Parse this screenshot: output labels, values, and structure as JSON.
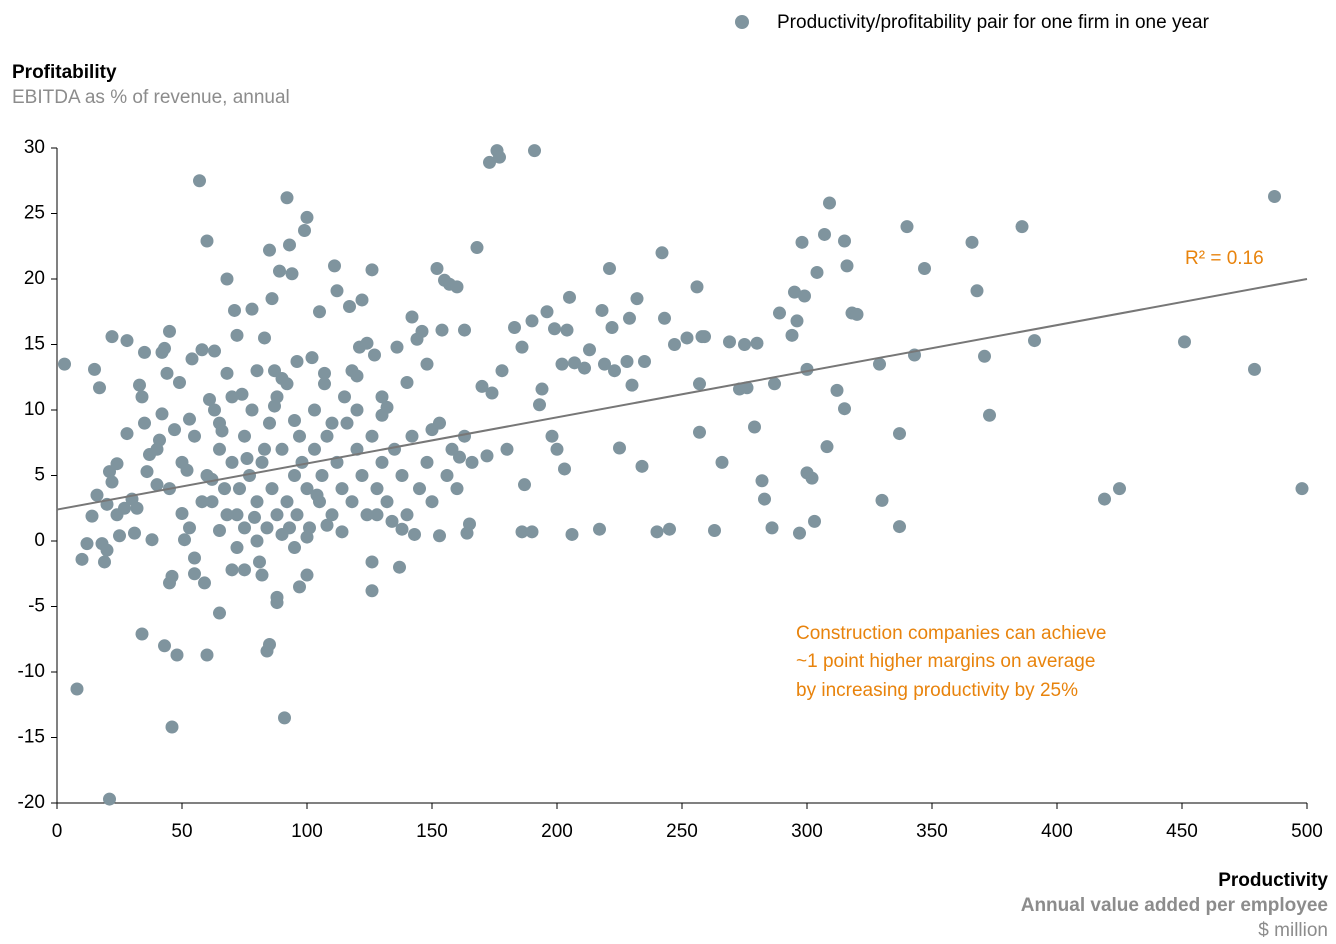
{
  "chart_data": {
    "type": "scatter",
    "y_title": "Profitability",
    "y_subtitle": "EBITDA as % of revenue, annual",
    "x_title": "Productivity",
    "x_subtitle": "Annual value added per employee",
    "x_unit": "$ million",
    "annotation": [
      "Construction companies can achieve",
      "~1 point higher margins on average",
      "by increasing productivity by 25%"
    ],
    "r2_label": "R² = 0.16",
    "legend": "top-right",
    "xlim": [
      0,
      500
    ],
    "xticks": [
      0,
      50,
      100,
      150,
      200,
      250,
      300,
      350,
      400,
      450,
      500
    ],
    "ylim": [
      -20,
      30
    ],
    "yticks": [
      -20,
      -15,
      -10,
      -5,
      0,
      5,
      10,
      15,
      20,
      25,
      30
    ],
    "trendline": {
      "color": "#777777",
      "x": [
        0,
        500
      ],
      "values": [
        2.4,
        20
      ]
    },
    "series": [
      {
        "name": "Productivity/profitability pair for one firm in one year",
        "color": "#7f949e",
        "x": [
          3,
          8,
          10,
          12,
          14,
          15,
          16,
          17,
          18,
          19,
          20,
          20,
          21,
          21,
          22,
          22,
          24,
          24,
          25,
          27,
          28,
          28,
          30,
          31,
          32,
          33,
          34,
          34,
          35,
          36,
          37,
          38,
          40,
          41,
          42,
          42,
          43,
          43,
          44,
          45,
          45,
          46,
          46,
          47,
          48,
          49,
          50,
          51,
          52,
          53,
          54,
          55,
          55,
          57,
          58,
          59,
          60,
          60,
          61,
          62,
          63,
          65,
          65,
          66,
          68,
          68,
          70,
          71,
          72,
          72,
          74,
          75,
          76,
          78,
          79,
          80,
          81,
          82,
          83,
          84,
          85,
          85,
          86,
          87,
          88,
          88,
          89,
          90,
          91,
          92,
          93,
          94,
          95,
          96,
          97,
          99,
          100,
          100,
          102,
          104,
          105,
          107,
          108,
          111,
          112,
          114,
          117,
          118,
          120,
          121,
          122,
          124,
          126,
          126,
          126,
          127,
          128,
          130,
          132,
          134,
          136,
          137,
          138,
          140,
          142,
          143,
          144,
          146,
          148,
          150,
          152,
          153,
          154,
          155,
          157,
          160,
          161,
          163,
          164,
          165,
          168,
          170,
          172,
          173,
          174,
          176,
          177,
          178,
          180,
          183,
          186,
          186,
          187,
          190,
          190,
          191,
          193,
          194,
          196,
          198,
          199,
          200,
          202,
          203,
          204,
          205,
          206,
          207,
          211,
          213,
          217,
          218,
          219,
          221,
          222,
          223,
          225,
          228,
          229,
          230,
          232,
          234,
          235,
          240,
          242,
          243,
          245,
          247,
          252,
          256,
          257,
          257,
          258,
          259,
          263,
          266,
          269,
          273,
          275,
          276,
          279,
          280,
          282,
          283,
          286,
          287,
          289,
          294,
          295,
          296,
          297,
          298,
          299,
          300,
          300,
          302,
          303,
          304,
          307,
          308,
          309,
          312,
          315,
          315,
          316,
          318,
          320,
          329,
          330,
          337,
          337,
          340,
          343,
          347,
          366,
          368,
          371,
          373,
          386,
          391,
          419,
          425,
          451,
          479,
          487,
          498,
          60,
          62,
          65,
          67,
          70,
          72,
          75,
          77,
          80,
          82,
          84,
          86,
          88,
          90,
          92,
          93,
          95,
          96,
          98,
          100,
          101,
          103,
          105,
          106,
          108,
          110,
          112,
          114,
          116,
          118,
          120,
          122,
          124,
          126,
          128,
          130,
          132,
          135,
          138,
          140,
          142,
          145,
          148,
          150,
          153,
          156,
          158,
          160,
          163,
          166,
          85,
          88,
          78,
          70,
          65,
          55,
          50,
          45,
          40,
          35,
          90,
          95,
          100,
          80,
          75,
          110,
          115,
          120,
          130,
          97,
          103,
          92,
          83,
          73,
          68,
          58,
          53,
          63,
          87,
          107
        ],
        "values": [
          13.5,
          -11.3,
          -1.4,
          -0.2,
          1.9,
          13.1,
          3.5,
          11.7,
          -0.2,
          -1.6,
          -0.7,
          2.8,
          -19.7,
          5.3,
          15.6,
          4.5,
          5.9,
          2,
          0.4,
          2.5,
          15.3,
          8.2,
          3.2,
          0.6,
          2.5,
          11.9,
          11,
          -7.1,
          14.4,
          5.3,
          6.6,
          0.1,
          4.3,
          7.7,
          14.4,
          9.7,
          -8,
          14.7,
          12.8,
          16,
          -3.2,
          -2.7,
          -14.2,
          8.5,
          -8.7,
          12.1,
          2.1,
          0.1,
          5.4,
          9.3,
          13.9,
          -1.3,
          -2.5,
          27.5,
          14.6,
          -3.2,
          22.9,
          -8.7,
          10.8,
          4.7,
          14.5,
          -5.5,
          0.8,
          8.4,
          20,
          12.8,
          -2.2,
          17.6,
          15.7,
          -0.5,
          11.2,
          -2.2,
          6.3,
          17.7,
          1.8,
          13,
          -1.6,
          -2.6,
          15.5,
          -8.4,
          22.2,
          -7.9,
          18.5,
          10.3,
          -4.3,
          -4.7,
          20.6,
          12.4,
          -13.5,
          26.2,
          22.6,
          20.4,
          9.2,
          13.7,
          -3.5,
          23.7,
          24.7,
          -2.6,
          14,
          3.5,
          17.5,
          12.8,
          1.2,
          21,
          19.1,
          0.7,
          17.9,
          13,
          12.6,
          14.8,
          18.4,
          15.1,
          20.7,
          -3.8,
          -1.6,
          14.2,
          2,
          9.6,
          10.2,
          1.5,
          14.8,
          -2,
          0.9,
          12.1,
          17.1,
          0.5,
          15.4,
          16,
          13.5,
          8.5,
          20.8,
          0.4,
          16.1,
          19.9,
          19.6,
          19.4,
          6.4,
          16.1,
          0.6,
          1.3,
          22.4,
          11.8,
          6.5,
          28.9,
          11.3,
          29.8,
          29.3,
          13,
          7,
          16.3,
          14.8,
          0.7,
          4.3,
          16.8,
          0.7,
          29.8,
          10.4,
          11.6,
          17.5,
          8,
          16.2,
          7,
          13.5,
          5.5,
          16.1,
          18.6,
          0.5,
          13.6,
          13.2,
          14.6,
          0.9,
          17.6,
          13.5,
          20.8,
          16.3,
          13,
          7.1,
          13.7,
          17,
          11.9,
          18.5,
          5.7,
          13.7,
          0.7,
          22,
          17,
          0.9,
          15,
          15.5,
          19.4,
          12,
          8.3,
          15.6,
          15.6,
          0.8,
          6,
          15.2,
          11.6,
          15,
          11.7,
          8.7,
          15.1,
          4.6,
          3.2,
          1,
          12,
          17.4,
          15.7,
          19,
          16.8,
          0.6,
          22.8,
          18.7,
          13.1,
          5.2,
          4.8,
          1.5,
          20.5,
          23.4,
          7.2,
          25.8,
          11.5,
          22.9,
          10.1,
          21,
          17.4,
          17.3,
          13.5,
          3.1,
          8.2,
          1.1,
          24,
          14.2,
          20.8,
          22.8,
          19.1,
          14.1,
          9.6,
          24,
          15.3,
          3.2,
          4,
          15.2,
          13.1,
          26.3,
          4,
          5,
          3,
          7,
          4,
          6,
          2,
          8,
          5,
          3,
          6,
          1,
          4,
          2,
          7,
          3,
          1,
          5,
          2,
          6,
          4,
          1,
          7,
          3,
          5,
          8,
          2,
          6,
          4,
          9,
          3,
          7,
          5,
          2,
          8,
          4,
          6,
          3,
          7,
          5,
          2,
          8,
          4,
          6,
          3,
          9,
          5,
          7,
          4,
          8,
          6,
          9,
          11,
          10,
          11,
          9,
          8,
          6,
          4,
          7,
          9,
          0.5,
          -0.5,
          0.3,
          0,
          1,
          9,
          11,
          10,
          11,
          8,
          10,
          12,
          7,
          4,
          2,
          3,
          1,
          10,
          13,
          12
        ]
      }
    ]
  }
}
